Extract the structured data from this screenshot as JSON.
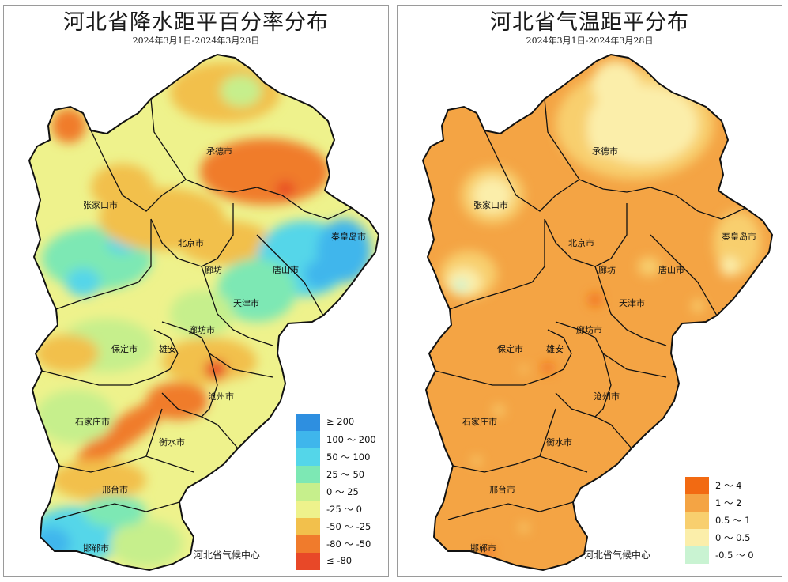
{
  "left_panel": {
    "title": "河北省降水距平百分率分布",
    "subtitle": "2024年3月1日-2024年3月28日",
    "credit": "河北省气候中心",
    "legend": [
      {
        "label": "≥ 200",
        "color": "#2e8fe0"
      },
      {
        "label": "100 ～ 200",
        "color": "#3fb6ec"
      },
      {
        "label": "50 ～ 100",
        "color": "#54d6e9"
      },
      {
        "label": "25 ～ 50",
        "color": "#7de8b4"
      },
      {
        "label": "0 ～ 25",
        "color": "#c6ef8c"
      },
      {
        "label": "-25 ～ 0",
        "color": "#eef28c"
      },
      {
        "label": "-50 ～ -25",
        "color": "#f2c04c"
      },
      {
        "label": "-80 ～ -50",
        "color": "#f07b2c"
      },
      {
        "label": "≤ -80",
        "color": "#e84828"
      }
    ],
    "cities": [
      "承德市",
      "张家口市",
      "北京市",
      "廊坊",
      "秦皇岛市",
      "唐山市",
      "天津市",
      "廊坊市",
      "保定市",
      "雄安",
      "沧州市",
      "石家庄市",
      "衡水市",
      "邢台市",
      "邯郸市"
    ]
  },
  "right_panel": {
    "title": "河北省气温距平分布",
    "subtitle": "2024年3月1日-2024年3月28日",
    "credit": "河北省气候中心",
    "legend": [
      {
        "label": "2 ～ 4",
        "color": "#f26a12"
      },
      {
        "label": "1 ～ 2",
        "color": "#f4a444"
      },
      {
        "label": "0.5 ～ 1",
        "color": "#f8cf6e"
      },
      {
        "label": "0 ～ 0.5",
        "color": "#fbeeaa"
      },
      {
        "label": "-0.5 ～ 0",
        "color": "#c9f3d2"
      }
    ],
    "cities": [
      "承德市",
      "张家口市",
      "北京市",
      "廊坊",
      "秦皇岛市",
      "唐山市",
      "天津市",
      "廊坊市",
      "保定市",
      "雄安",
      "沧州市",
      "石家庄市",
      "衡水市",
      "邢台市",
      "邯郸市"
    ]
  }
}
